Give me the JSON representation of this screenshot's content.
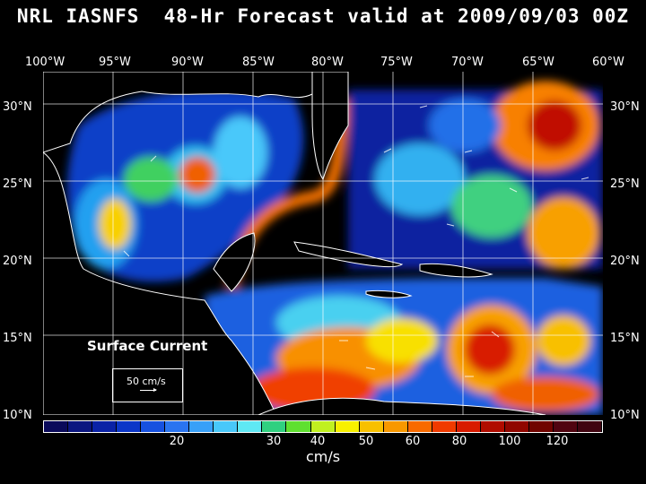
{
  "title": "NRL IASNFS  48-Hr Forecast valid at 2009/09/03 00Z",
  "longitude_labels": [
    "100°W",
    "95°W",
    "90°W",
    "85°W",
    "80°W",
    "75°W",
    "70°W",
    "65°W",
    "60°W"
  ],
  "latitude_labels": [
    "30°N",
    "25°N",
    "20°N",
    "15°N",
    "10°N"
  ],
  "map_label": "Surface Current",
  "scale_label": "50 cm/s",
  "colorbar": {
    "colors": [
      "#0a0a5a",
      "#0b1680",
      "#0a22a6",
      "#0b36c8",
      "#1651e0",
      "#2a74f0",
      "#38a0f8",
      "#48c8fa",
      "#5fe8f4",
      "#30d080",
      "#5fe030",
      "#c0f020",
      "#f8f000",
      "#f8c000",
      "#f89800",
      "#f86a00",
      "#f03a00",
      "#d81a00",
      "#b00c00",
      "#900600",
      "#700400",
      "#500410",
      "#400410"
    ],
    "tick_labels": [
      "20",
      "30",
      "40",
      "50",
      "60",
      "80",
      "100",
      "120"
    ],
    "unit": "cm/s"
  }
}
